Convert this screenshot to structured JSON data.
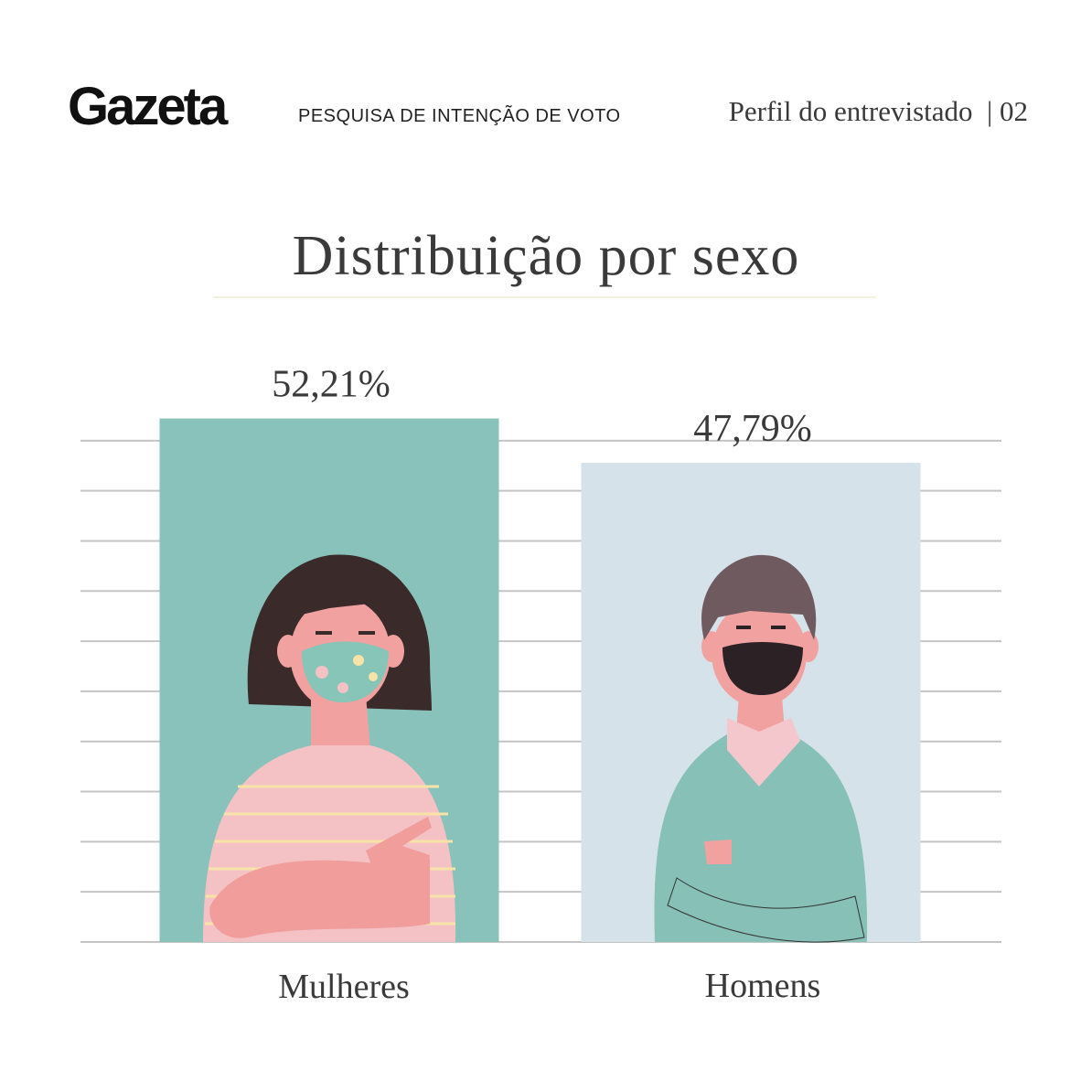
{
  "header": {
    "brand": "Gazeta",
    "section": "PESQUISA DE INTENÇÃO DE VOTO",
    "subtitle": "Perfil do entrevistado  | 02"
  },
  "chart_data": {
    "type": "bar",
    "title": "Distribuição por sexo",
    "categories": [
      "Mulheres",
      "Homens"
    ],
    "values": [
      52.21,
      47.79
    ],
    "value_labels": [
      "52,21%",
      "47,79%"
    ],
    "colors": [
      "#88c2ba",
      "#d6e2ea"
    ],
    "ylim": [
      0,
      55
    ],
    "yticks": [
      0,
      5,
      10,
      15,
      20,
      25,
      30,
      35,
      40,
      45,
      50
    ],
    "grid": true
  }
}
